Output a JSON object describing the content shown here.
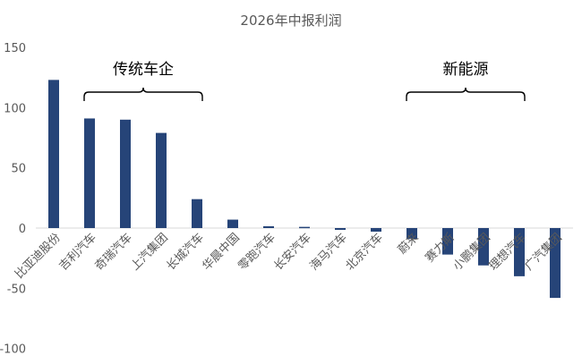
{
  "chart_data": {
    "type": "bar",
    "title": "2026年中报利润",
    "xlabel": "",
    "ylabel": "",
    "ylim": [
      -100,
      150
    ],
    "yticks": [
      150,
      100,
      50,
      0,
      -50,
      -100
    ],
    "grid": false,
    "legend": "none",
    "bar_color": "#264478",
    "categories": [
      "比亚迪股份",
      "吉利汽车",
      "奇瑞汽车",
      "上汽集团",
      "长城汽车",
      "华晨中国",
      "零跑汽车",
      "长安汽车",
      "海马汽车",
      "北京汽车",
      "蔚来",
      "赛力斯",
      "小鹏集团",
      "理想汽车",
      "广汽集团"
    ],
    "values": [
      123,
      91,
      90,
      79,
      24,
      7,
      1.5,
      1,
      -1.5,
      -3,
      -9,
      -22,
      -31,
      -40,
      -58
    ],
    "groups": [
      {
        "label": "传统车企",
        "from": 1,
        "to": 4
      },
      {
        "label": "新能源",
        "from": 10,
        "to": 13
      }
    ]
  }
}
